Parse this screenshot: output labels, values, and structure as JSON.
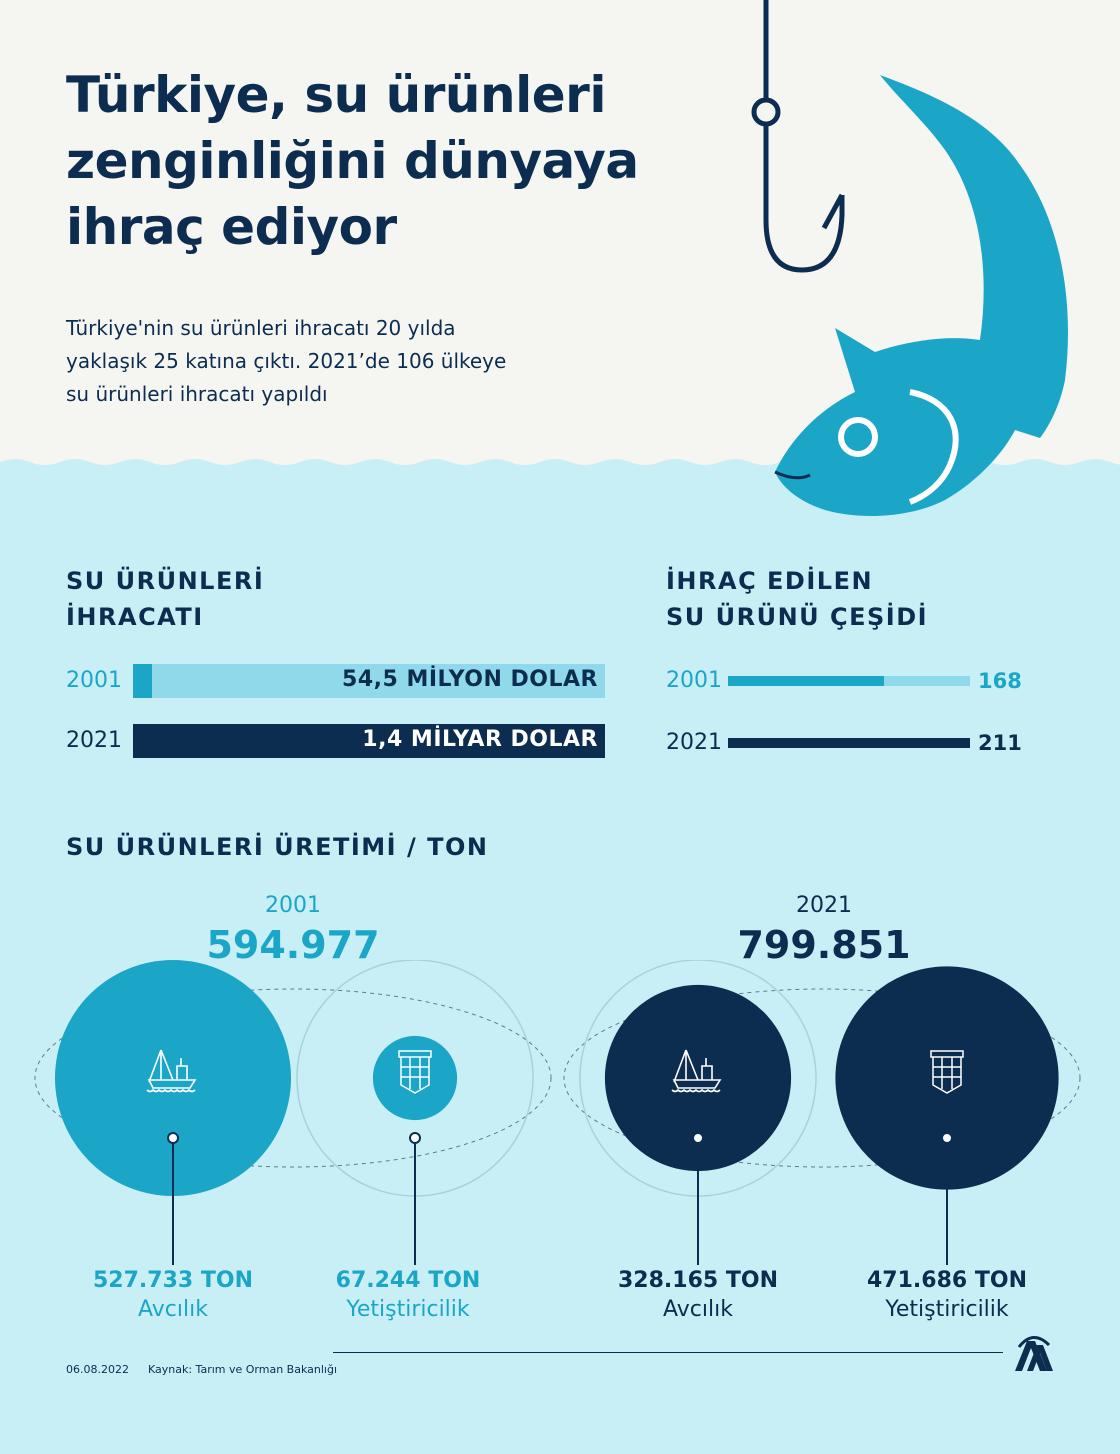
{
  "title": {
    "line1": "Türkiye, su ürünleri",
    "line2": "zenginliğini dünyaya",
    "line3": "ihraç ediyor"
  },
  "subtitle": {
    "line1": "Türkiye'nin su ürünleri ihracatı 20 yılda",
    "line2": "yaklaşık 25 katına çıktı. 2021’de 106 ülkeye",
    "line3": "su ürünleri ihracatı yapıldı"
  },
  "colors": {
    "navy": "#0c2d50",
    "teal": "#1ba6c7",
    "light_teal": "#8fd9ea",
    "water": "#c9eff6",
    "paper": "#f5f5f2"
  },
  "icons": [
    "fishing-hook-icon",
    "fish-icon",
    "fishing-boat-icon",
    "fish-farm-cage-icon",
    "aa-logo-icon"
  ],
  "chart_data": [
    {
      "type": "bar",
      "orientation": "horizontal",
      "title_line1": "SU ÜRÜNLERİ",
      "title_line2": "İHRACATI",
      "categories": [
        "2001",
        "2021"
      ],
      "values": [
        54.5,
        1400
      ],
      "units": "milyon dolar",
      "data_labels": [
        "54,5 MİLYON DOLAR",
        "1,4 MİLYAR DOLAR"
      ],
      "xlim": [
        0,
        1400
      ]
    },
    {
      "type": "bar",
      "orientation": "horizontal",
      "title_line1": "İHRAÇ EDİLEN",
      "title_line2": "SU ÜRÜNÜ ÇEŞİDİ",
      "categories": [
        "2001",
        "2021"
      ],
      "values": [
        168,
        211
      ],
      "data_labels": [
        "168",
        "211"
      ],
      "xlim": [
        0,
        211
      ]
    },
    {
      "type": "bubble",
      "title": "SU ÜRÜNLERİ ÜRETİMİ / TON",
      "groups": [
        {
          "year": "2001",
          "total": 594977,
          "total_label": "594.977",
          "items": [
            {
              "value": 527733,
              "value_label": "527.733 TON",
              "label": "Avcılık"
            },
            {
              "value": 67244,
              "value_label": "67.244 TON",
              "label": "Yetiştiricilik"
            }
          ]
        },
        {
          "year": "2021",
          "total": 799851,
          "total_label": "799.851",
          "items": [
            {
              "value": 328165,
              "value_label": "328.165 TON",
              "label": "Avcılık"
            },
            {
              "value": 471686,
              "value_label": "471.686 TON",
              "label": "Yetiştiricilik"
            }
          ]
        }
      ]
    }
  ],
  "footer": {
    "date": "06.08.2022",
    "source": "Kaynak: Tarım ve Orman Bakanlığı"
  }
}
